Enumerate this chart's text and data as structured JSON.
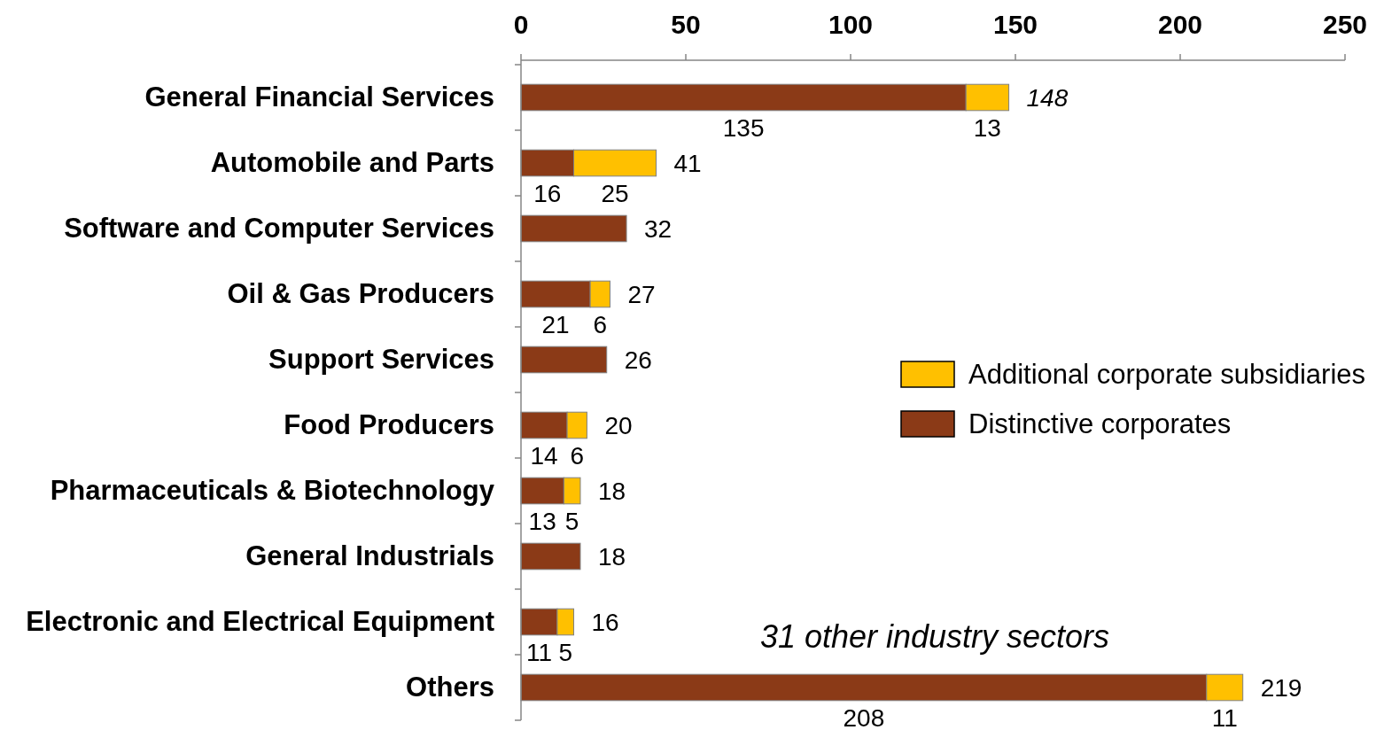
{
  "chart_data": {
    "type": "bar",
    "orientation": "horizontal",
    "stacked": true,
    "categories": [
      "General Financial Services",
      "Automobile and Parts",
      "Software and Computer Services",
      "Oil & Gas Producers",
      "Support Services",
      "Food Producers",
      "Pharmaceuticals & Biotechnology",
      "General Industrials",
      "Electronic and Electrical Equipment",
      "Others"
    ],
    "series": [
      {
        "name": "Distinctive corporates",
        "color": "#8b3a17",
        "values": [
          135,
          16,
          32,
          21,
          26,
          14,
          13,
          18,
          11,
          208
        ],
        "value_labels": [
          "135",
          "16",
          null,
          "21",
          null,
          "14",
          "13",
          null,
          "11",
          "208"
        ]
      },
      {
        "name": "Additional corporate subsidiaries",
        "color": "#ffc000",
        "values": [
          13,
          25,
          null,
          6,
          null,
          6,
          5,
          null,
          5,
          11
        ],
        "value_labels": [
          "13",
          "25",
          null,
          "6",
          null,
          "6",
          "5",
          null,
          "5",
          "11"
        ]
      }
    ],
    "totals": [
      "148",
      "41",
      "32",
      "27",
      "26",
      "20",
      "18",
      "18",
      "16",
      "219"
    ],
    "xlim": [
      0,
      250
    ],
    "xticks": [
      0,
      50,
      100,
      150,
      200,
      250
    ],
    "annotations": [
      "31 other industry sectors"
    ],
    "legend": "right"
  }
}
